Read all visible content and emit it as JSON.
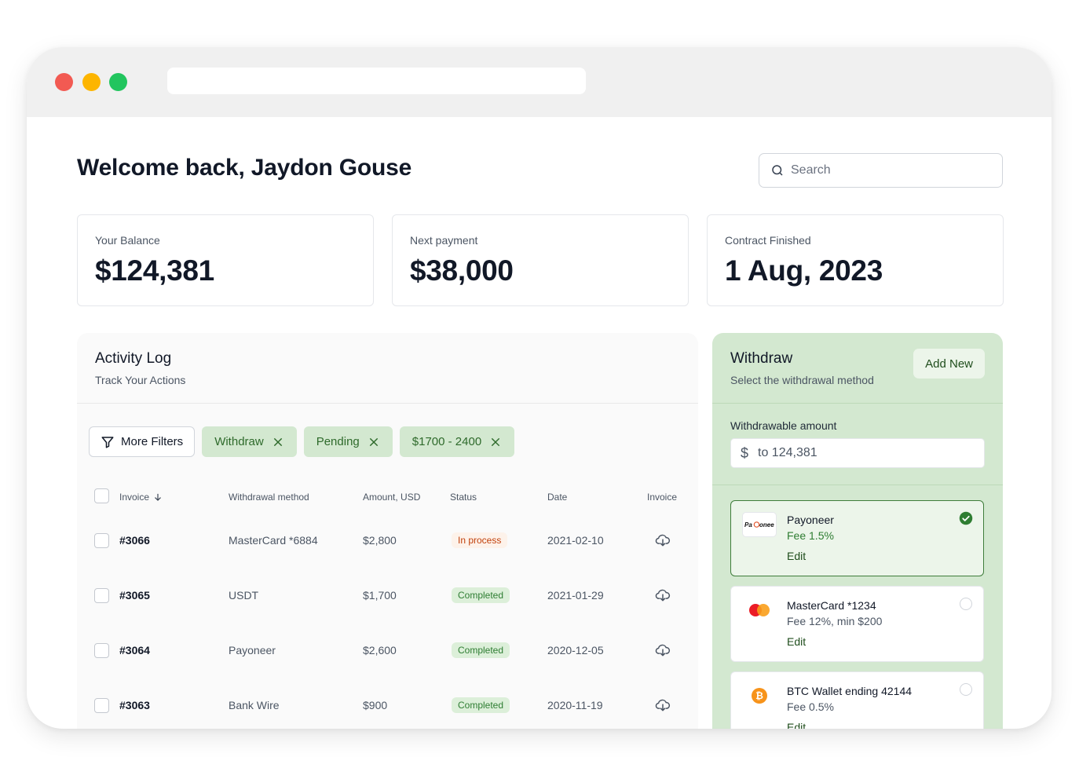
{
  "welcome": {
    "prefix": "Welcome back,",
    "name": "Jaydon Gouse"
  },
  "search": {
    "placeholder": "Search"
  },
  "stats": [
    {
      "label": "Your Balance",
      "value": "$124,381"
    },
    {
      "label": "Next payment",
      "value": "$38,000"
    },
    {
      "label": "Contract Finished",
      "value": "1 Aug, 2023"
    }
  ],
  "activity": {
    "title": "Activity Log",
    "subtitle": "Track Your Actions",
    "more_filters": "More Filters",
    "chips": [
      "Withdraw",
      "Pending",
      "$1700 - 2400"
    ],
    "columns": [
      "Invoice",
      "Withdrawal method",
      "Amount, USD",
      "Status",
      "Date",
      "Invoice"
    ],
    "rows": [
      {
        "invoice": "#3066",
        "method": "MasterCard *6884",
        "amount": "$2,800",
        "status": "In process",
        "date": "2021-02-10"
      },
      {
        "invoice": "#3065",
        "method": "USDT",
        "amount": "$1,700",
        "status": "Completed",
        "date": "2021-01-29"
      },
      {
        "invoice": "#3064",
        "method": "Payoneer",
        "amount": "$2,600",
        "status": "Completed",
        "date": "2020-12-05"
      },
      {
        "invoice": "#3063",
        "method": "Bank Wire",
        "amount": "$900",
        "status": "Completed",
        "date": "2020-11-19"
      }
    ]
  },
  "withdraw": {
    "title": "Withdraw",
    "subtitle": "Select the withdrawal method",
    "add_new": "Add New",
    "amount_label": "Withdrawable amount",
    "currency": "$",
    "amount_placeholder": "to 124,381",
    "methods": [
      {
        "name": "Payoneer",
        "fee": "Fee 1.5%",
        "edit": "Edit",
        "logo": "Payoneer",
        "selected": true
      },
      {
        "name": "MasterCard *1234",
        "fee": "Fee 12%, min $200",
        "edit": "Edit",
        "selected": false
      },
      {
        "name": "BTC Wallet ending 42144",
        "fee": "Fee 0.5%",
        "edit": "Edit",
        "selected": false
      }
    ]
  },
  "colors": {
    "accent_green": "#d3e8d0",
    "accent_text": "#2e6a2b",
    "in_process": "#c2410c",
    "completed": "#2e7d32"
  }
}
